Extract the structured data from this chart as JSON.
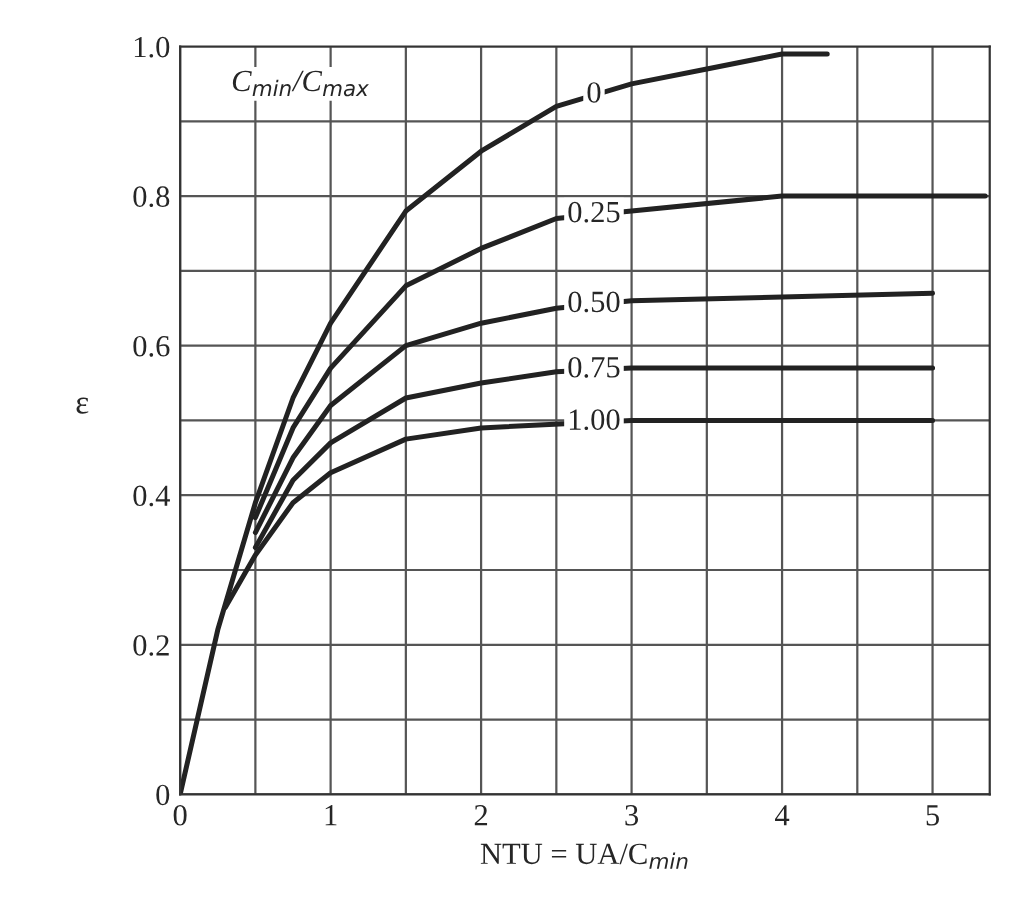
{
  "chart_data": {
    "type": "line",
    "xlabel": "NTU = UA/C$_{min}$",
    "ylabel": "ε",
    "legend_title": "C$_{min}$/C$_{max}$",
    "xlim": [
      0,
      5.38
    ],
    "ylim": [
      0,
      1.0
    ],
    "xticks": [
      0,
      {
        "value": 0.5,
        "label": null
      },
      1,
      {
        "value": 1.5,
        "label": null
      },
      2,
      {
        "value": 2.5,
        "label": null
      },
      3,
      {
        "value": 3.5,
        "label": null
      },
      4,
      {
        "value": 4.5,
        "label": null
      },
      5
    ],
    "yticks": [
      0,
      {
        "value": 0.1,
        "label": null
      },
      0.2,
      {
        "value": 0.3,
        "label": null
      },
      0.4,
      {
        "value": 0.5,
        "label": null
      },
      0.6,
      {
        "value": 0.7,
        "label": null
      },
      0.8,
      {
        "value": 0.9,
        "label": null
      },
      {
        "value": 1.0,
        "label": "1.0"
      }
    ],
    "grid": true,
    "legend": false,
    "marker": "none",
    "line_style": "solid",
    "series": [
      {
        "name": "0",
        "color": "#222222",
        "x": [
          0,
          0.25,
          0.5,
          0.75,
          1,
          1.5,
          2,
          2.5,
          3,
          3.5,
          4,
          4.3
        ],
        "values": [
          0,
          0.22,
          0.39,
          0.53,
          0.63,
          0.78,
          0.86,
          0.92,
          0.95,
          0.97,
          0.99,
          0.99
        ]
      },
      {
        "name": "0.25",
        "color": "#222222",
        "x": [
          0.5,
          0.75,
          1,
          1.5,
          2,
          2.5,
          3,
          4,
          5,
          5.35
        ],
        "values": [
          0.37,
          0.49,
          0.57,
          0.68,
          0.73,
          0.77,
          0.78,
          0.8,
          0.8,
          0.8
        ]
      },
      {
        "name": "0.50",
        "color": "#222222",
        "x": [
          0.5,
          0.75,
          1,
          1.5,
          2,
          2.5,
          3,
          4,
          5
        ],
        "values": [
          0.35,
          0.45,
          0.52,
          0.6,
          0.63,
          0.65,
          0.66,
          0.665,
          0.67
        ]
      },
      {
        "name": "0.75",
        "color": "#222222",
        "x": [
          0.5,
          0.75,
          1,
          1.5,
          2,
          2.5,
          3,
          4,
          5
        ],
        "values": [
          0.33,
          0.42,
          0.47,
          0.53,
          0.55,
          0.565,
          0.57,
          0.57,
          0.57
        ]
      },
      {
        "name": "1.00",
        "color": "#222222",
        "x": [
          0.3,
          0.5,
          0.75,
          1,
          1.5,
          2,
          3,
          4,
          5
        ],
        "values": [
          0.25,
          0.32,
          0.39,
          0.43,
          0.475,
          0.49,
          0.5,
          0.5,
          0.5
        ]
      }
    ]
  }
}
